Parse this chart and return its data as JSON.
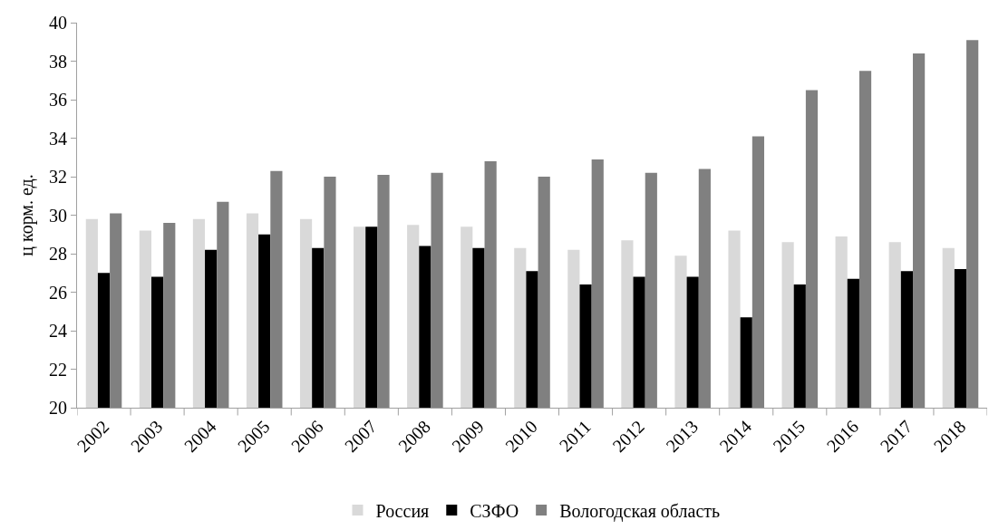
{
  "chart_data": {
    "type": "bar",
    "ylabel": "ц корм. ед.",
    "categories": [
      "2002",
      "2003",
      "2004",
      "2005",
      "2006",
      "2007",
      "2008",
      "2009",
      "2010",
      "2011",
      "2012",
      "2013",
      "2014",
      "2015",
      "2016",
      "2017",
      "2018"
    ],
    "series": [
      {
        "name": "Россия",
        "color": "#d9d9d9",
        "values": [
          29.8,
          29.2,
          29.8,
          30.1,
          29.8,
          29.4,
          29.5,
          29.4,
          28.3,
          28.2,
          28.7,
          27.9,
          29.2,
          28.6,
          28.9,
          28.6,
          28.3
        ]
      },
      {
        "name": "СЗФО",
        "color": "#000000",
        "values": [
          27.0,
          26.8,
          28.2,
          29.0,
          28.3,
          29.4,
          28.4,
          28.3,
          27.1,
          26.4,
          26.8,
          26.8,
          24.7,
          26.4,
          26.7,
          27.1,
          27.2
        ]
      },
      {
        "name": "Вологодская область",
        "color": "#808080",
        "values": [
          30.1,
          29.6,
          30.7,
          32.3,
          32.0,
          32.1,
          32.2,
          32.8,
          32.0,
          32.9,
          32.2,
          32.4,
          34.1,
          36.5,
          37.5,
          38.4,
          39.1
        ]
      }
    ],
    "ylim": [
      20,
      40
    ],
    "yticks": [
      20,
      22,
      24,
      26,
      28,
      30,
      32,
      34,
      36,
      38,
      40
    ],
    "legend": "bottom"
  }
}
